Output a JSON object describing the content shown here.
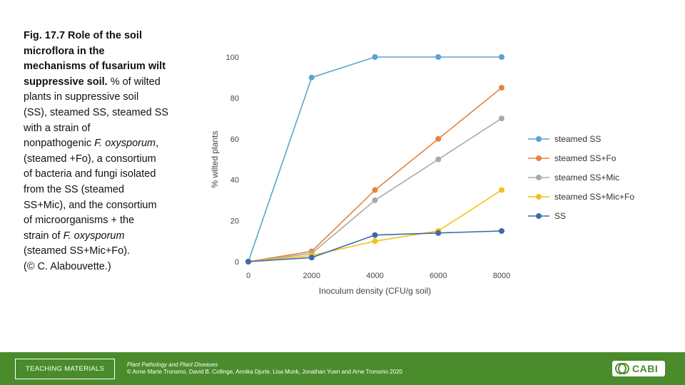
{
  "caption": {
    "lines": [
      {
        "segments": [
          {
            "text": "Fig. 17.7 Role of the soil",
            "style": "bold"
          }
        ]
      },
      {
        "segments": [
          {
            "text": "microflora in the",
            "style": "bold"
          }
        ]
      },
      {
        "segments": [
          {
            "text": "mechanisms of fusarium wilt",
            "style": "bold"
          }
        ]
      },
      {
        "segments": [
          {
            "text": "suppressive soil.",
            "style": "bold"
          },
          {
            "text": " % of wilted",
            "style": "normal"
          }
        ]
      },
      {
        "segments": [
          {
            "text": "plants in suppressive soil",
            "style": "normal"
          }
        ]
      },
      {
        "segments": [
          {
            "text": "(SS), steamed SS, steamed SS",
            "style": "normal"
          }
        ]
      },
      {
        "segments": [
          {
            "text": "with a strain of",
            "style": "normal"
          }
        ]
      },
      {
        "segments": [
          {
            "text": "nonpathogenic ",
            "style": "normal"
          },
          {
            "text": "F. oxysporum",
            "style": "italic"
          },
          {
            "text": ",",
            "style": "normal"
          }
        ]
      },
      {
        "segments": [
          {
            "text": "(steamed +Fo), a consortium",
            "style": "normal"
          }
        ]
      },
      {
        "segments": [
          {
            "text": "of bacteria and fungi isolated",
            "style": "normal"
          }
        ]
      },
      {
        "segments": [
          {
            "text": "from the SS (steamed",
            "style": "normal"
          }
        ]
      },
      {
        "segments": [
          {
            "text": "SS+Mic), and the consortium",
            "style": "normal"
          }
        ]
      },
      {
        "segments": [
          {
            "text": "of microorganisms + the",
            "style": "normal"
          }
        ]
      },
      {
        "segments": [
          {
            "text": "strain of ",
            "style": "normal"
          },
          {
            "text": "F. oxysporum",
            "style": "italic"
          }
        ]
      },
      {
        "segments": [
          {
            "text": "(steamed SS+Mic+Fo).",
            "style": "normal"
          }
        ]
      },
      {
        "segments": [
          {
            "text": "(© C. Alabouvette.)",
            "style": "normal"
          }
        ]
      }
    ]
  },
  "chart_data": {
    "type": "line",
    "title": "",
    "xlabel": "Inoculum density (CFU/g soil)",
    "ylabel": "% wilted plants",
    "x": [
      0,
      2000,
      4000,
      6000,
      8000
    ],
    "xticks": [
      "0",
      "2000",
      "4000",
      "6000",
      "8000"
    ],
    "yticks": [
      "0",
      "20",
      "40",
      "60",
      "80",
      "100"
    ],
    "xlim": [
      0,
      8000
    ],
    "ylim": [
      0,
      100
    ],
    "grid": false,
    "legend_position": "right",
    "series": [
      {
        "name": "steamed SS",
        "color": "#5ba3d0",
        "values": [
          0,
          90,
          100,
          100,
          100
        ]
      },
      {
        "name": "steamed SS+Fo",
        "color": "#e8823a",
        "values": [
          0,
          5,
          35,
          60,
          85
        ]
      },
      {
        "name": "steamed SS+Mic",
        "color": "#a9a9a9",
        "values": [
          0,
          4,
          30,
          50,
          70
        ]
      },
      {
        "name": "steamed SS+Mic+Fo",
        "color": "#f2c318",
        "values": [
          0,
          3,
          10,
          15,
          35
        ]
      },
      {
        "name": "SS",
        "color": "#3f6aa8",
        "values": [
          0,
          2,
          13,
          14,
          15
        ]
      }
    ]
  },
  "footer": {
    "label": "TEACHING MATERIALS",
    "book_title": "Plant Pathology and Plant Diseases",
    "book_authors": "© Anne Marte Tronsmo, David B. Collinge, Annika Djurle, Lisa Munk, Jonathan Yuen and Arne Tronsmo 2020",
    "logo_text": "CABI"
  }
}
